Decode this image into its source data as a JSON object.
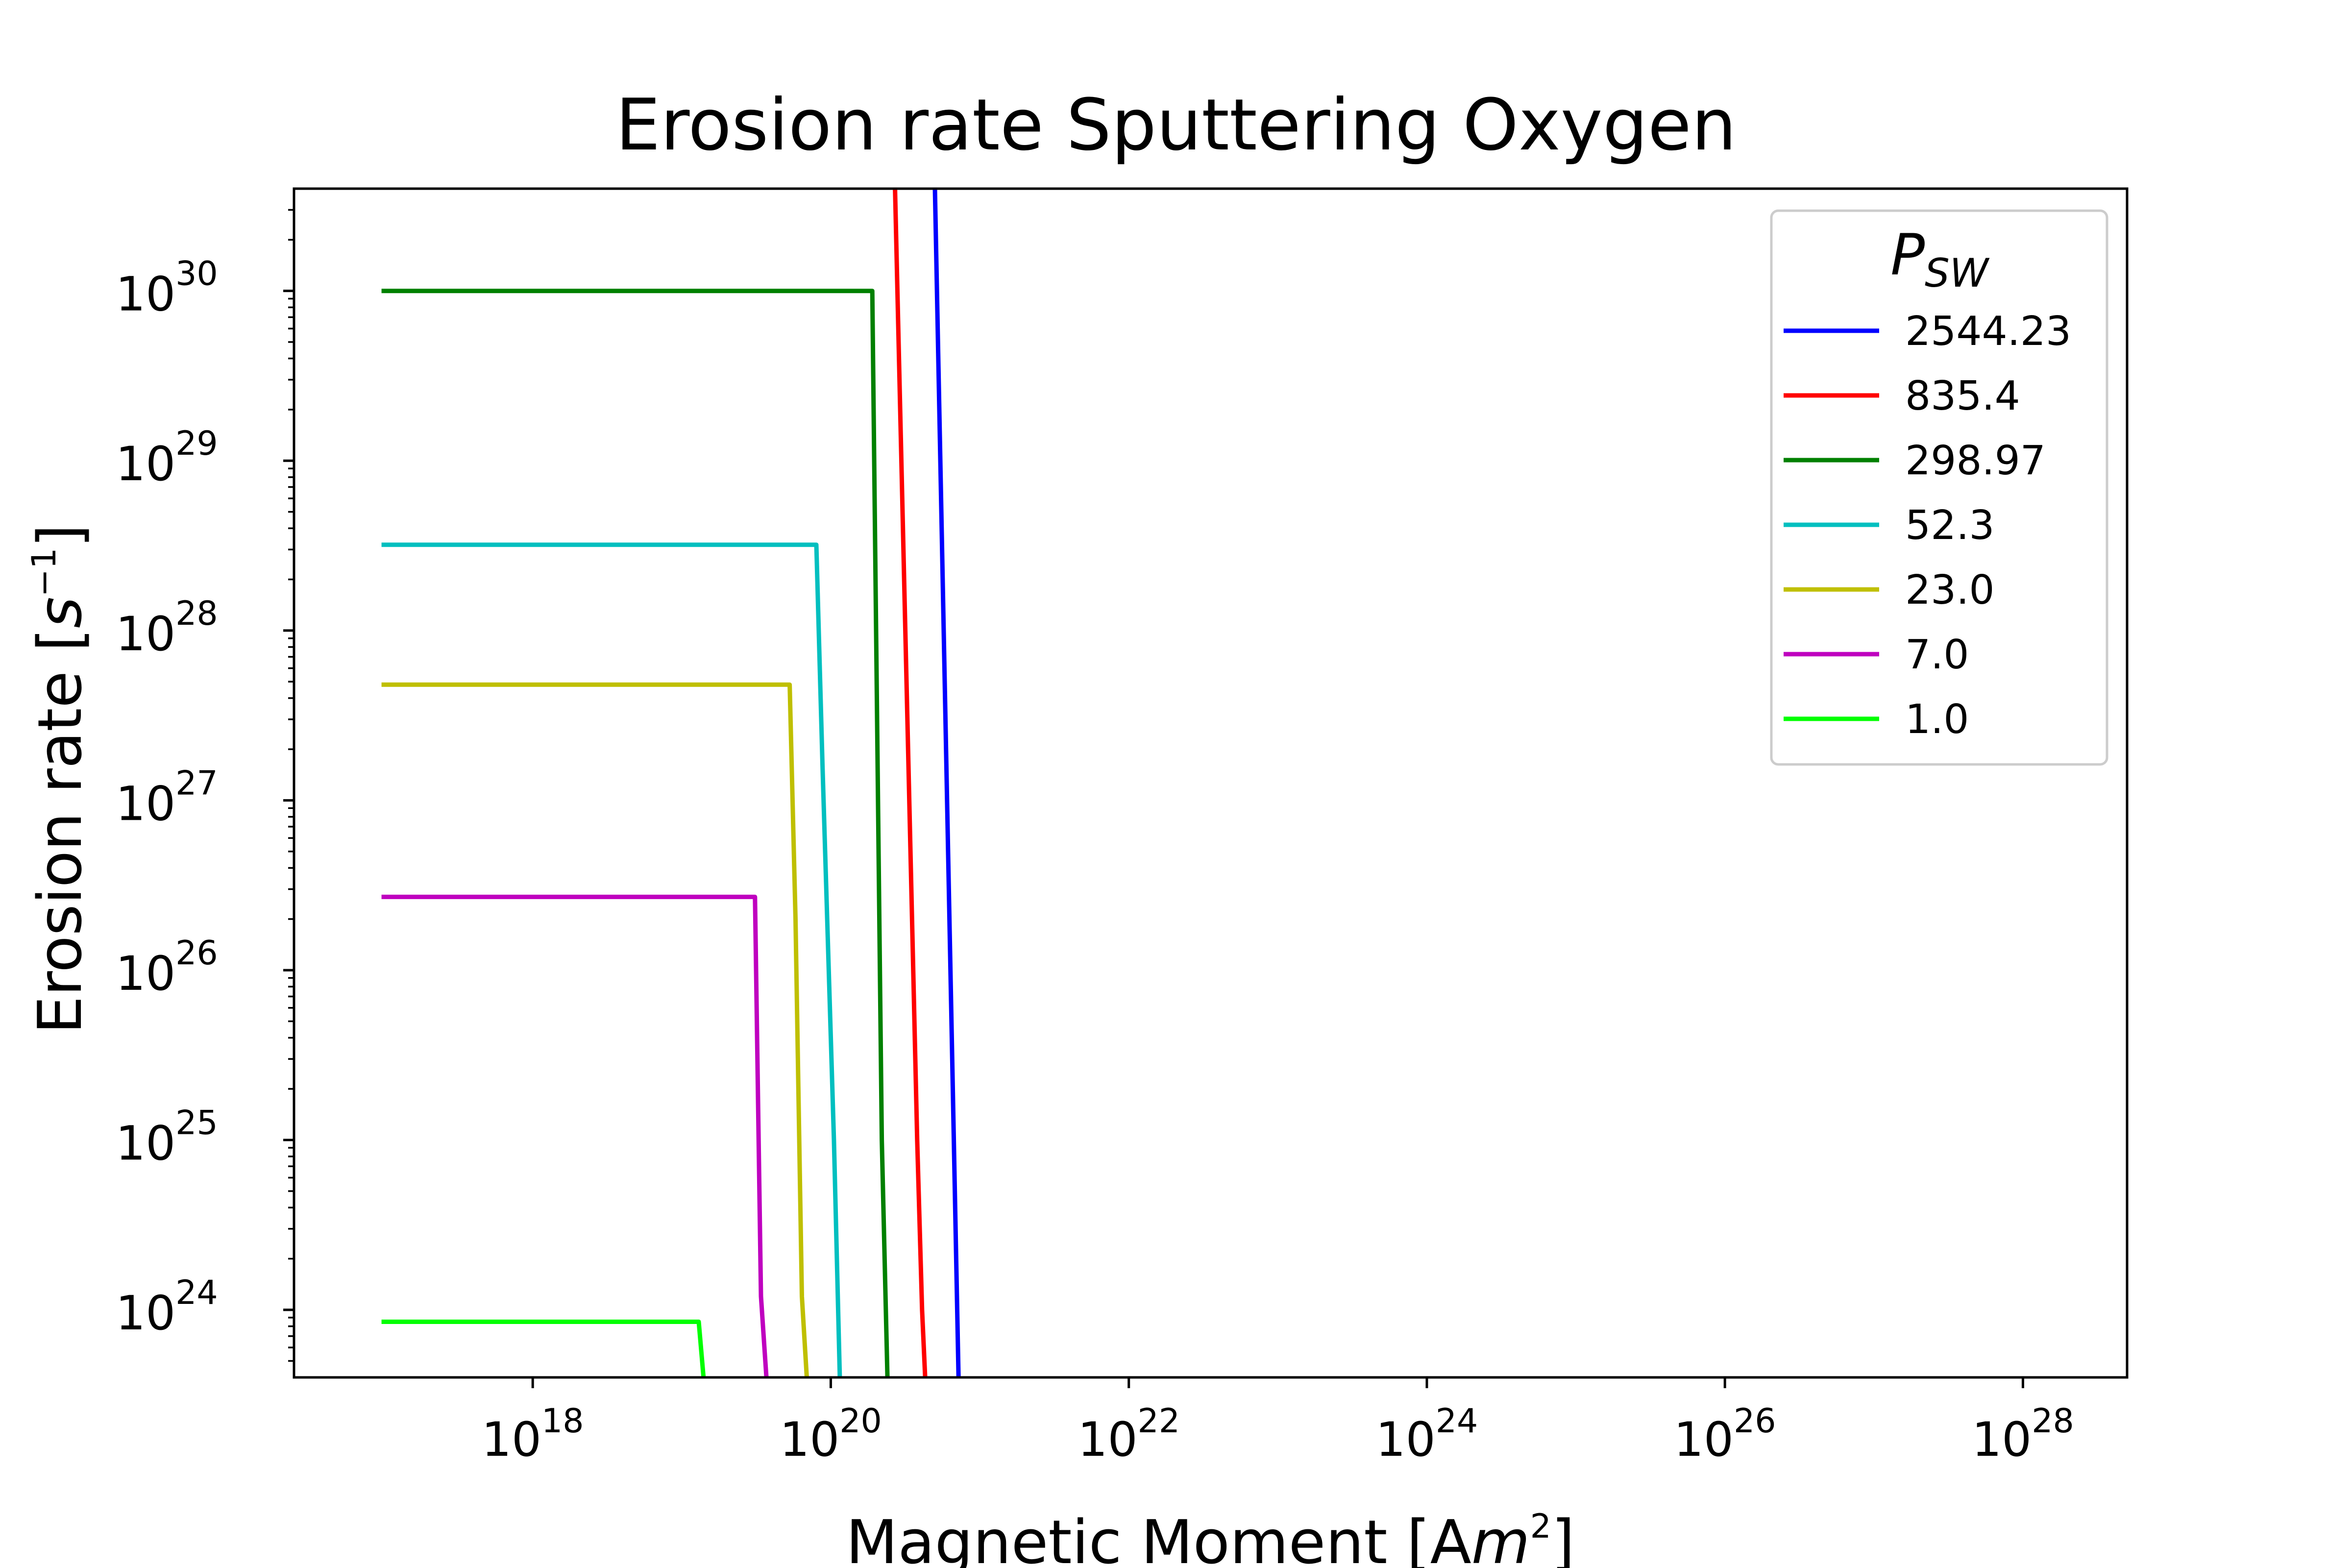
{
  "chart_data": {
    "type": "line",
    "title": "Erosion rate Sputtering Oxygen",
    "xlabel": {
      "base": "Magnetic Moment [A",
      "italic": "m",
      "sup": "2",
      "end": "]"
    },
    "ylabel": {
      "base": "Erosion rate [",
      "italic": "s",
      "sup": "−1",
      "end": "]"
    },
    "x_scale": "log",
    "y_scale": "log",
    "xlim": [
      2.5e+16,
      5e+28
    ],
    "ylim": [
      4e+23,
      4e+30
    ],
    "x_ticks": [
      {
        "value": 1e+18,
        "base": "10",
        "exp": "18"
      },
      {
        "value": 1e+20,
        "base": "10",
        "exp": "20"
      },
      {
        "value": 1e+22,
        "base": "10",
        "exp": "22"
      },
      {
        "value": 1e+24,
        "base": "10",
        "exp": "24"
      },
      {
        "value": 1e+26,
        "base": "10",
        "exp": "26"
      },
      {
        "value": 1e+28,
        "base": "10",
        "exp": "28"
      }
    ],
    "y_ticks": [
      {
        "value": 1e+24,
        "base": "10",
        "exp": "24"
      },
      {
        "value": 1e+25,
        "base": "10",
        "exp": "25"
      },
      {
        "value": 1e+26,
        "base": "10",
        "exp": "26"
      },
      {
        "value": 1e+27,
        "base": "10",
        "exp": "27"
      },
      {
        "value": 1e+28,
        "base": "10",
        "exp": "28"
      },
      {
        "value": 1e+29,
        "base": "10",
        "exp": "29"
      },
      {
        "value": 1e+30,
        "base": "10",
        "exp": "30"
      }
    ],
    "grid": false,
    "legend": {
      "title_base": "P",
      "title_sub": "SW",
      "placement": "top-right"
    },
    "series": [
      {
        "name": "2544.23",
        "color": "#0000ff",
        "x": [
          5e+20,
          7.2e+20
        ],
        "y": [
          4e+30,
          4e+23
        ]
      },
      {
        "name": "835.4",
        "color": "#ff0000",
        "x": [
          2.7e+20,
          3.8e+20,
          4.1e+20,
          4.3e+20
        ],
        "y": [
          4e+30,
          1e+25,
          1e+24,
          4e+23
        ]
      },
      {
        "name": "298.97",
        "color": "#008000",
        "x": [
          1e+17,
          1.9e+20,
          2.2e+20,
          2.4e+20
        ],
        "y": [
          1e+30,
          1e+30,
          1e+25,
          4e+23
        ]
      },
      {
        "name": "52.3",
        "color": "#00bfbf",
        "x": [
          1e+17,
          8e+19,
          8.8e+19,
          1.05e+20,
          1.15e+20
        ],
        "y": [
          3.2e+28,
          3.2e+28,
          1.6e+27,
          1e+25,
          4e+23
        ]
      },
      {
        "name": "23.0",
        "color": "#bfbf00",
        "x": [
          1e+17,
          5.3e+19,
          5.8e+19,
          6.4e+19,
          6.9e+19
        ],
        "y": [
          4.8e+27,
          4.8e+27,
          2e+26,
          1.2e+24,
          4e+23
        ]
      },
      {
        "name": "7.0",
        "color": "#bf00bf",
        "x": [
          1e+17,
          3.1e+19,
          3.4e+19,
          3.7e+19
        ],
        "y": [
          2.7e+26,
          2.7e+26,
          1.2e+24,
          4e+23
        ]
      },
      {
        "name": "1.0",
        "color": "#00ff00",
        "x": [
          1e+17,
          1.3e+19,
          1.4e+19
        ],
        "y": [
          8.5e+23,
          8.5e+23,
          4e+23
        ]
      }
    ]
  }
}
